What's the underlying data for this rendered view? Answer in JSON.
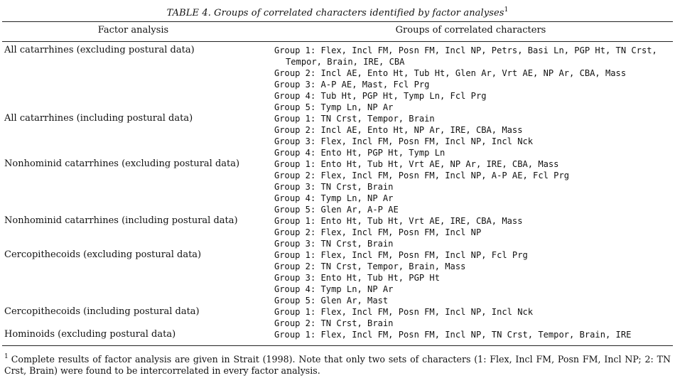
{
  "caption": {
    "text": "TABLE 4. Groups of correlated characters identified by factor analyses",
    "marker": "1"
  },
  "headers": {
    "col1": "Factor analysis",
    "col2": "Groups of correlated characters"
  },
  "rows": [
    {
      "factor_analysis": "All catarrhines (excluding postural data)",
      "groups": [
        "Group 1: Flex, Incl FM, Posn FM, Incl NP, Petrs, Basi Ln, PGP Ht, TN Crst, Tempor, Brain, IRE, CBA",
        "Group 2: Incl AE, Ento Ht, Tub Ht, Glen Ar, Vrt AE, NP Ar, CBA, Mass",
        "Group 3: A-P AE, Mast, Fcl Prg",
        "Group 4: Tub Ht, PGP Ht, Tymp Ln, Fcl Prg",
        "Group 5: Tymp Ln, NP Ar"
      ]
    },
    {
      "factor_analysis": "All catarrhines (including postural data)",
      "groups": [
        "Group 1: TN Crst, Tempor, Brain",
        "Group 2: Incl AE, Ento Ht, NP Ar, IRE, CBA, Mass",
        "Group 3: Flex, Incl FM, Posn FM, Incl NP, Incl Nck",
        "Group 4: Ento Ht, PGP Ht, Tymp Ln"
      ]
    },
    {
      "factor_analysis": "Nonhominid catarrhines (excluding postural data)",
      "groups": [
        "Group 1: Ento Ht, Tub Ht, Vrt AE, NP Ar, IRE, CBA, Mass",
        "Group 2: Flex, Incl FM, Posn FM, Incl NP, A-P AE, Fcl Prg",
        "Group 3: TN Crst, Brain",
        "Group 4: Tymp Ln, NP Ar",
        "Group 5: Glen Ar, A-P AE"
      ]
    },
    {
      "factor_analysis": "Nonhominid catarrhines (including postural data)",
      "groups": [
        "Group 1: Ento Ht, Tub Ht, Vrt AE, IRE, CBA, Mass",
        "Group 2: Flex, Incl FM, Posn FM, Incl NP",
        "Group 3: TN Crst, Brain"
      ]
    },
    {
      "factor_analysis": "Cercopithecoids (excluding postural data)",
      "groups": [
        "Group 1: Flex, Incl FM, Posn FM, Incl NP, Fcl Prg",
        "Group 2: TN Crst, Tempor, Brain, Mass",
        "Group 3: Ento Ht, Tub Ht, PGP Ht",
        "Group 4: Tymp Ln, NP Ar",
        "Group 5: Glen Ar, Mast"
      ]
    },
    {
      "factor_analysis": "Cercopithecoids (including postural data)",
      "groups": [
        "Group 1: Flex, Incl FM, Posn FM, Incl NP, Incl Nck",
        "Group 2: TN Crst, Brain"
      ]
    },
    {
      "factor_analysis": "Hominoids (excluding postural data)",
      "groups": [
        "Group 1: Flex, Incl FM, Posn FM, Incl NP, TN Crst, Tempor, Brain, IRE"
      ]
    }
  ],
  "footnote": {
    "marker": "1",
    "text": "Complete results of factor analysis are given in Strait (1998). Note that only two sets of characters (1: Flex, Incl FM, Posn FM, Incl NP; 2: TN Crst, Brain) were found to be intercorrelated in every factor analysis."
  }
}
